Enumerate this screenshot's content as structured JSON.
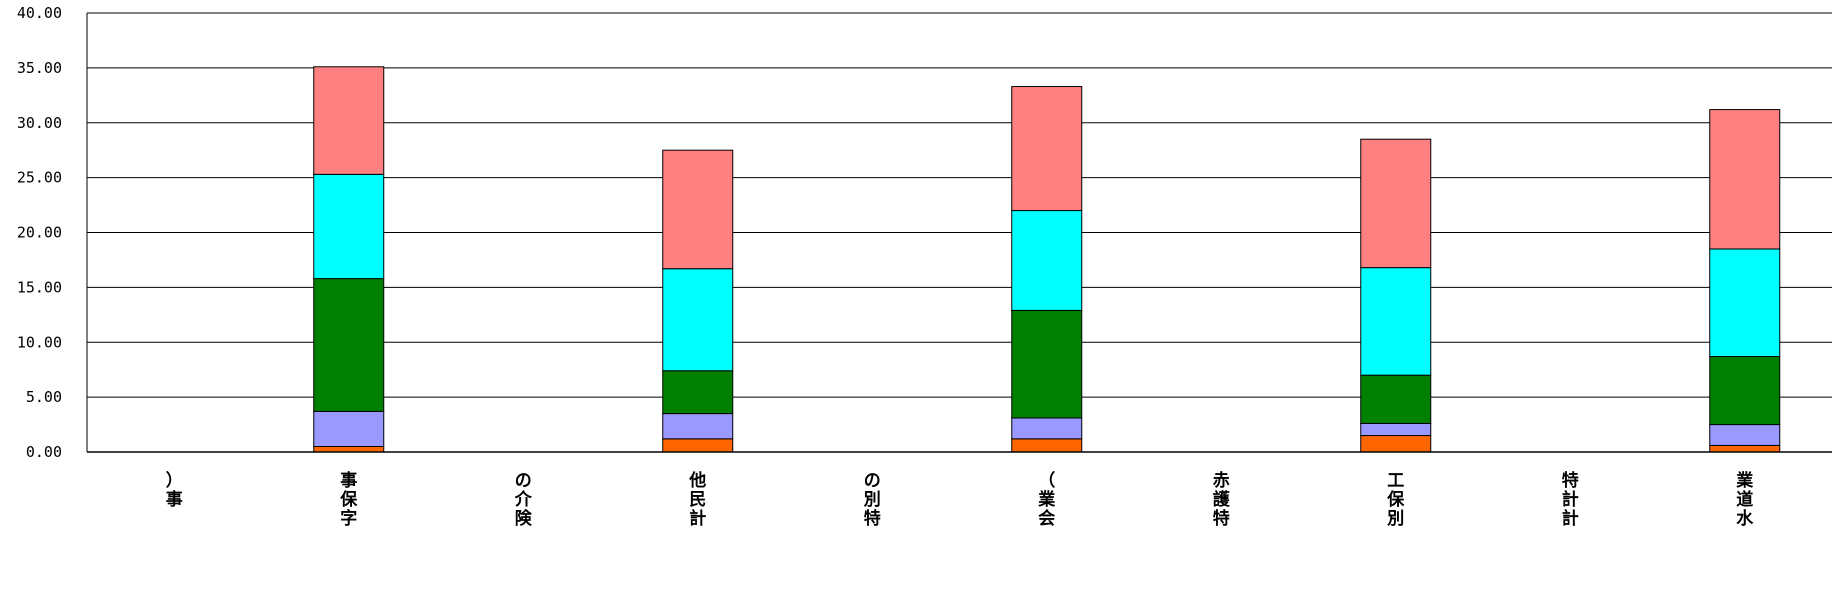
{
  "chart_data": {
    "type": "bar",
    "stacked": true,
    "title": "",
    "xlabel": "",
    "ylabel": "",
    "ylim": [
      0,
      40
    ],
    "yticks": [
      "0.00",
      "5.00",
      "10.00",
      "15.00",
      "20.00",
      "25.00",
      "30.00",
      "35.00",
      "40.00"
    ],
    "grid": true,
    "legend": "none",
    "categories": [
      "）\n事",
      "事\n保\n字",
      "の\n介\n険",
      "他\n民\n計",
      "の\n別\n特",
      "（\n業\n会",
      "赤\n護\n特",
      "工\n保\n別",
      "特\n計\n計",
      "業\n道\n水"
    ],
    "series": [
      {
        "color": "#FF6600",
        "values": [
          0,
          0.5,
          0,
          1.2,
          0,
          1.2,
          0,
          1.5,
          0,
          0.6
        ]
      },
      {
        "color": "#9999FF",
        "values": [
          0,
          3.2,
          0,
          2.3,
          0,
          1.9,
          0,
          1.1,
          0,
          1.9
        ]
      },
      {
        "color": "#008000",
        "values": [
          0,
          12.1,
          0,
          3.9,
          0,
          9.8,
          0,
          4.4,
          0,
          6.2
        ]
      },
      {
        "color": "#00FFFF",
        "values": [
          0,
          9.5,
          0,
          9.3,
          0,
          9.1,
          0,
          9.8,
          0,
          9.8
        ]
      },
      {
        "color": "#FF8080",
        "values": [
          0,
          9.8,
          0,
          10.8,
          0,
          11.3,
          0,
          11.7,
          0,
          12.7
        ]
      }
    ]
  }
}
